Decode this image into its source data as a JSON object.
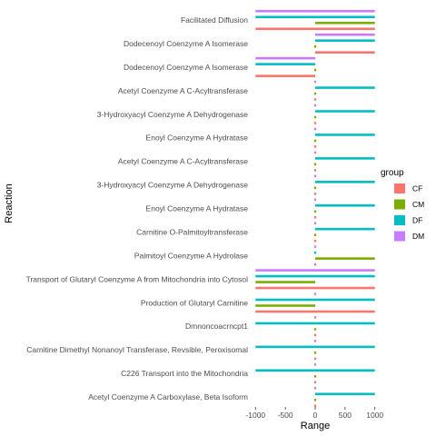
{
  "chart_data": {
    "type": "bar",
    "orientation": "horizontal",
    "title": "",
    "xlabel": "Range",
    "ylabel": "Reaction",
    "xlim": [
      -1050,
      1050
    ],
    "x_ticks": [
      -1000,
      -500,
      0,
      500,
      1000
    ],
    "x_tick_labels": [
      "-1000",
      "-500",
      "0",
      "500",
      "1000"
    ],
    "grid": false,
    "legend": {
      "title": "group",
      "position": "right"
    },
    "group_colors": {
      "CF": "#F8766D",
      "CM": "#7CAE00",
      "DF": "#00BFC4",
      "DM": "#C77CFF"
    },
    "series_order": [
      "DM",
      "DF",
      "CM",
      "CF"
    ],
    "series_bar_thickness_units": [
      6,
      6,
      6,
      6
    ],
    "categories": [
      "Facilitated Diffusion",
      "Dodecenoyl Coenzyme A Isomerase",
      "Dodecenoyl Coenzyme A Isomerase",
      "Acetyl Coenzyme A C-Acyltransferase",
      "3-Hydroxyacyl Coenzyme A Dehydrogenase",
      "Enoyl Coenzyme A Hydratase",
      "Acetyl Coenzyme A C-Acyltransferase",
      "3-Hydroxyacyl Coenzyme A Dehydrogenase",
      "Enoyl Coenzyme A Hydratase",
      "Carnitine O-Palmitoyltransferase",
      "Palmitoyl Coenzyme A Hydrolase",
      "Transport of Glutaryl Coenzyme A from Mitochondria into Cytosol",
      "Production of Glutaryl Carnitine",
      "Dmnoncoacrncpt1",
      "Carnitine Dimethyl Nonanoyl Transferase, Revsible, Peroxisomal",
      "C226 Transport into the Mitochondria",
      "Acetyl Coenzyme A Carboxylase, Beta Isoform"
    ],
    "series": [
      {
        "name": "DM",
        "ranges": [
          [
            -1000,
            1000
          ],
          [
            0,
            1000
          ],
          [
            -1000,
            0
          ],
          [
            0,
            0
          ],
          [
            0,
            0
          ],
          [
            0,
            0
          ],
          [
            0,
            0
          ],
          [
            0,
            0
          ],
          [
            0,
            0
          ],
          [
            0,
            0
          ],
          [
            0,
            0
          ],
          [
            -1000,
            1000
          ],
          [
            0,
            0
          ],
          [
            0,
            0
          ],
          [
            0,
            0
          ],
          [
            0,
            0
          ],
          [
            0,
            0
          ]
        ]
      },
      {
        "name": "DF",
        "ranges": [
          [
            -1000,
            1000
          ],
          [
            0,
            1000
          ],
          [
            -1000,
            0
          ],
          [
            0,
            1000
          ],
          [
            0,
            1000
          ],
          [
            0,
            1000
          ],
          [
            0,
            1000
          ],
          [
            0,
            1000
          ],
          [
            0,
            1000
          ],
          [
            0,
            1000
          ],
          [
            0,
            0
          ],
          [
            -1000,
            1000
          ],
          [
            -1000,
            1000
          ],
          [
            -1000,
            1000
          ],
          [
            -1000,
            1000
          ],
          [
            -1000,
            1000
          ],
          [
            0,
            1000
          ]
        ]
      },
      {
        "name": "CM",
        "ranges": [
          [
            0,
            1000
          ],
          [
            0,
            0
          ],
          [
            0,
            0
          ],
          [
            0,
            0
          ],
          [
            0,
            0
          ],
          [
            0,
            0
          ],
          [
            0,
            0
          ],
          [
            0,
            0
          ],
          [
            0,
            0
          ],
          [
            0,
            0
          ],
          [
            0,
            1000
          ],
          [
            -1000,
            0
          ],
          [
            -1000,
            0
          ],
          [
            0,
            0
          ],
          [
            0,
            0
          ],
          [
            0,
            0
          ],
          [
            0,
            0
          ]
        ]
      },
      {
        "name": "CF",
        "ranges": [
          [
            -1000,
            1000
          ],
          [
            0,
            1000
          ],
          [
            -1000,
            0
          ],
          [
            0,
            0
          ],
          [
            0,
            0
          ],
          [
            0,
            0
          ],
          [
            0,
            0
          ],
          [
            0,
            0
          ],
          [
            0,
            0
          ],
          [
            0,
            0
          ],
          [
            0,
            0
          ],
          [
            -1000,
            1000
          ],
          [
            -1000,
            1000
          ],
          [
            0,
            0
          ],
          [
            0,
            0
          ],
          [
            0,
            0
          ],
          [
            0,
            0
          ]
        ]
      }
    ]
  }
}
